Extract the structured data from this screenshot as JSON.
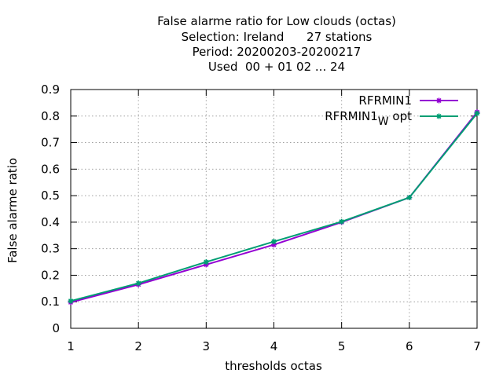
{
  "chart_data": {
    "type": "line",
    "title_lines": [
      "False alarme ratio  for Low clouds (octas)",
      "Selection: Ireland      27 stations",
      "Period: 20200203-20200217",
      "Used  00 + 01 02 ... 24"
    ],
    "xlabel": "thresholds octas",
    "ylabel": "False alarme ratio",
    "x": [
      1,
      2,
      3,
      4,
      5,
      6,
      7
    ],
    "xlim": [
      1,
      7
    ],
    "ylim": [
      0,
      0.9
    ],
    "xticks": [
      "1",
      "2",
      "3",
      "4",
      "5",
      "6",
      "7"
    ],
    "yticks": [
      "0",
      "0.1",
      "0.2",
      "0.3",
      "0.4",
      "0.5",
      "0.6",
      "0.7",
      "0.8",
      "0.9"
    ],
    "grid": true,
    "legend_position": "top-right",
    "series": [
      {
        "name": "RFRMIN1",
        "name_base": "RFRMIN1",
        "name_sub": "",
        "name_suffix": "",
        "color": "#9400d3",
        "values": [
          0.098,
          0.165,
          0.24,
          0.315,
          0.4,
          0.493,
          0.815
        ]
      },
      {
        "name": "RFRMIN1_W opt",
        "name_base": "RFRMIN1",
        "name_sub": "W",
        "name_suffix": "opt",
        "color": "#009e73",
        "values": [
          0.103,
          0.17,
          0.25,
          0.327,
          0.402,
          0.493,
          0.81
        ]
      }
    ]
  }
}
